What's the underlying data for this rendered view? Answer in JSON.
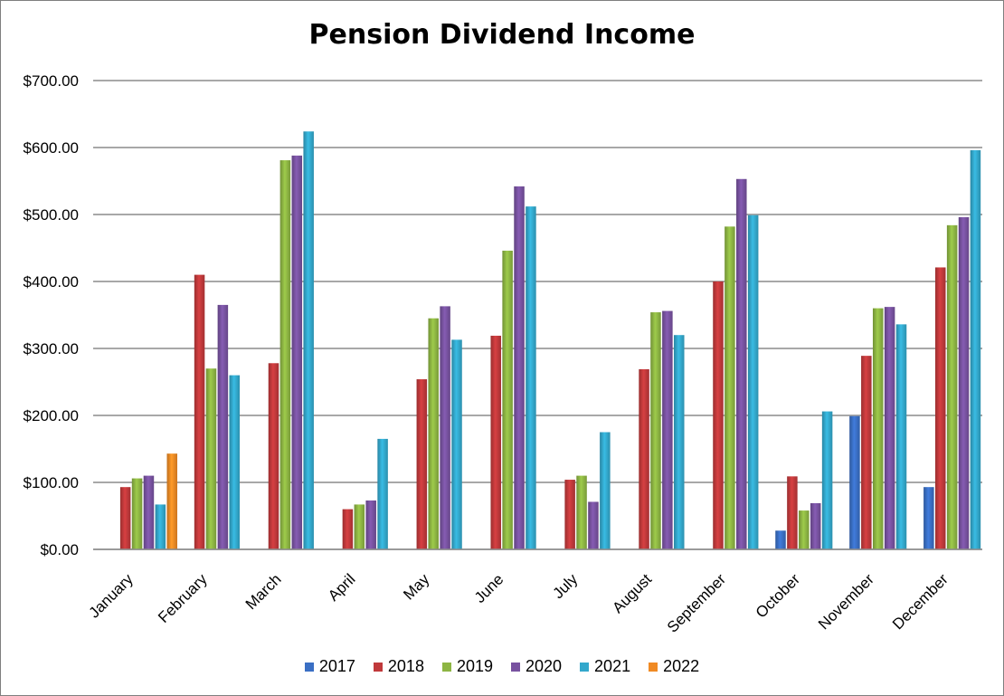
{
  "chart_data": {
    "type": "bar",
    "title": "Pension Dividend Income",
    "xlabel": "",
    "ylabel": "",
    "ylim": [
      0,
      700
    ],
    "yticks": [
      "$0.00",
      "$100.00",
      "$200.00",
      "$300.00",
      "$400.00",
      "$500.00",
      "$600.00",
      "$700.00"
    ],
    "ytick_values": [
      0,
      100,
      200,
      300,
      400,
      500,
      600,
      700
    ],
    "grid": true,
    "legend_position": "bottom",
    "categories": [
      "January",
      "February",
      "March",
      "April",
      "May",
      "June",
      "July",
      "August",
      "September",
      "October",
      "November",
      "December"
    ],
    "series": [
      {
        "name": "2017",
        "color": "#3a6fc4",
        "values": [
          null,
          null,
          null,
          null,
          null,
          null,
          null,
          null,
          null,
          28,
          199,
          93
        ]
      },
      {
        "name": "2018",
        "color": "#c0393b",
        "values": [
          93,
          410,
          278,
          60,
          254,
          319,
          104,
          269,
          400,
          109,
          289,
          421
        ]
      },
      {
        "name": "2019",
        "color": "#8db543",
        "values": [
          106,
          270,
          581,
          67,
          345,
          446,
          110,
          354,
          482,
          58,
          360,
          484
        ]
      },
      {
        "name": "2020",
        "color": "#7852a0",
        "values": [
          110,
          365,
          588,
          73,
          363,
          542,
          71,
          356,
          553,
          69,
          362,
          496
        ]
      },
      {
        "name": "2021",
        "color": "#33a8cc",
        "values": [
          67,
          260,
          624,
          165,
          313,
          512,
          175,
          320,
          499,
          206,
          336,
          596
        ]
      },
      {
        "name": "2022",
        "color": "#f08a24",
        "values": [
          143,
          null,
          null,
          null,
          null,
          null,
          null,
          null,
          null,
          null,
          null,
          null
        ]
      }
    ]
  }
}
